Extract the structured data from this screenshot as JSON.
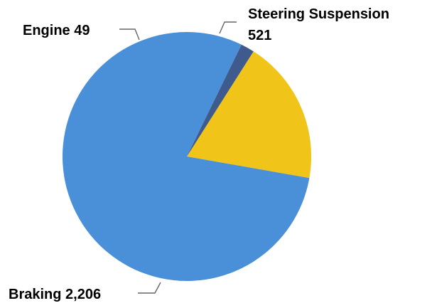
{
  "chart_data": {
    "type": "pie",
    "title": "",
    "slices": [
      {
        "label": "Steering Suspension",
        "value": 521,
        "value_text": "521",
        "color": "#F0C419"
      },
      {
        "label": "Braking",
        "value": 2206,
        "value_text": "2,206",
        "color": "#4A90D9"
      },
      {
        "label": "Engine",
        "value": 49,
        "value_text": "49",
        "color": "#3F5A8C"
      }
    ],
    "labels": {
      "engine": "Engine 49",
      "steering_line1": "Steering Suspension",
      "steering_line2": "521",
      "braking": "Braking 2,206"
    },
    "legend": "none",
    "data_labels": "outside with leader lines"
  }
}
